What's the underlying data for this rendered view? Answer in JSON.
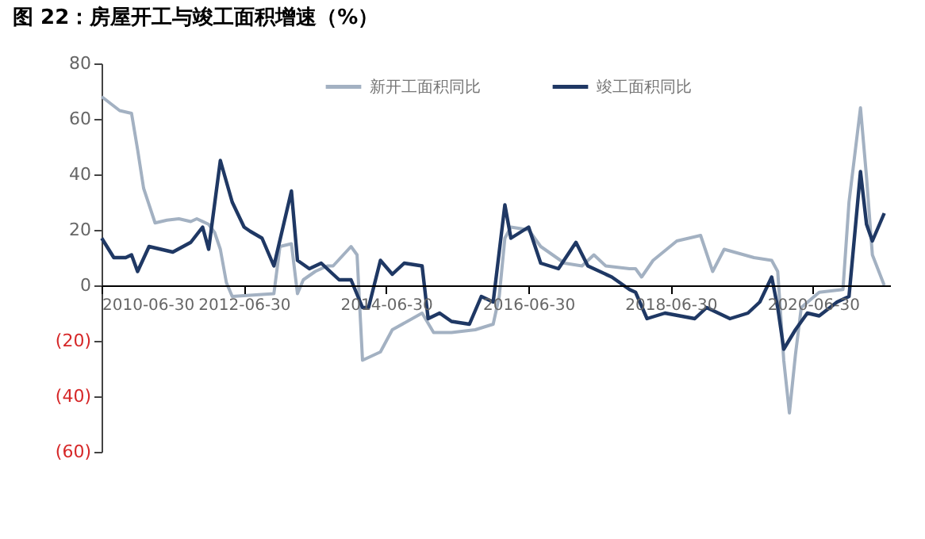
{
  "chart_data": {
    "type": "line",
    "title": "图 22：房屋开工与竣工面积增速（%）",
    "xlim": [
      "2010-06-30",
      "2021-07-31"
    ],
    "xticks": [
      "2010-06-30",
      "2012-06-30",
      "2014-06-30",
      "2016-06-30",
      "2018-06-30",
      "2020-06-30"
    ],
    "ylim": [
      -60,
      80
    ],
    "yticks": [
      {
        "value": -60,
        "label": "(60)"
      },
      {
        "value": -40,
        "label": "(40)"
      },
      {
        "value": -20,
        "label": "(20)"
      },
      0,
      20,
      40,
      60,
      80
    ],
    "grid": false,
    "legend": "top",
    "line_style": "solid",
    "marker": "none",
    "series": [
      {
        "name": "新开工面积同比",
        "color": "#a3b1c2",
        "x": [
          "2010-07",
          "2010-10",
          "2010-12",
          "2011-01",
          "2011-02",
          "2011-04",
          "2011-06",
          "2011-08",
          "2011-10",
          "2011-11",
          "2012-01",
          "2012-02",
          "2012-03",
          "2012-04",
          "2012-05",
          "2012-12",
          "2013-01",
          "2013-03",
          "2013-04",
          "2013-05",
          "2013-07",
          "2013-09",
          "2013-10",
          "2014-01",
          "2014-02",
          "2014-03",
          "2014-06",
          "2014-08",
          "2015-01",
          "2015-03",
          "2015-06",
          "2015-10",
          "2016-01",
          "2016-02",
          "2016-03",
          "2016-04",
          "2016-07",
          "2016-09",
          "2016-11",
          "2017-01",
          "2017-04",
          "2017-06",
          "2017-08",
          "2017-12",
          "2018-01",
          "2018-02",
          "2018-04",
          "2018-08",
          "2018-12",
          "2019-02",
          "2019-04",
          "2019-09",
          "2019-12",
          "2020-01",
          "2020-02",
          "2020-03",
          "2020-04",
          "2020-05",
          "2020-08",
          "2020-12",
          "2021-01",
          "2021-03",
          "2021-04",
          "2021-05",
          "2021-07"
        ],
        "values": [
          68,
          63,
          62,
          49,
          35,
          22.5,
          23.5,
          24,
          23,
          24,
          22,
          19,
          13,
          1,
          -4,
          -3,
          14,
          15,
          -3,
          2,
          5,
          7,
          7,
          14,
          11,
          -27,
          -24,
          -16,
          -10,
          -17,
          -17,
          -16,
          -14,
          -4,
          17,
          21,
          20,
          14,
          11,
          8,
          7,
          11,
          7,
          6,
          6,
          3,
          9,
          16,
          18,
          5,
          13,
          10,
          9,
          5,
          -27,
          -46,
          -25,
          -8,
          -2.5,
          -1.5,
          30,
          64,
          39,
          11,
          0
        ]
      },
      {
        "name": "竣工面积同比",
        "color": "#1f3864",
        "x": [
          "2010-07",
          "2010-09",
          "2010-11",
          "2010-12",
          "2011-01",
          "2011-03",
          "2011-05",
          "2011-07",
          "2011-10",
          "2011-12",
          "2012-01",
          "2012-03",
          "2012-05",
          "2012-07",
          "2012-08",
          "2012-10",
          "2012-12",
          "2013-03",
          "2013-04",
          "2013-06",
          "2013-08",
          "2013-10",
          "2013-11",
          "2014-01",
          "2014-03",
          "2014-04",
          "2014-06",
          "2014-08",
          "2014-10",
          "2015-01",
          "2015-02",
          "2015-04",
          "2015-06",
          "2015-09",
          "2015-11",
          "2016-01",
          "2016-03",
          "2016-04",
          "2016-07",
          "2016-09",
          "2016-12",
          "2017-03",
          "2017-05",
          "2017-09",
          "2017-12",
          "2018-01",
          "2018-03",
          "2018-06",
          "2018-11",
          "2019-01",
          "2019-05",
          "2019-08",
          "2019-10",
          "2019-12",
          "2020-01",
          "2020-02",
          "2020-04",
          "2020-06",
          "2020-08",
          "2020-11",
          "2021-01",
          "2021-03",
          "2021-04",
          "2021-05",
          "2021-07"
        ],
        "values": [
          17,
          10,
          10,
          11,
          5,
          14,
          13,
          12,
          15.5,
          21,
          13,
          45,
          30,
          21,
          19.5,
          17,
          7,
          34,
          9,
          6,
          8,
          4,
          2,
          2,
          -8,
          -8,
          9,
          4,
          8,
          7,
          -12,
          -10,
          -13,
          -14,
          -4,
          -6,
          29,
          17,
          21,
          8,
          6,
          15.5,
          7,
          3,
          -1.5,
          -2.5,
          -12,
          -10,
          -12,
          -8,
          -12,
          -10,
          -6,
          3,
          -8,
          -23,
          -16,
          -10,
          -11,
          -6,
          -4,
          41,
          22,
          16,
          26
        ]
      }
    ]
  }
}
